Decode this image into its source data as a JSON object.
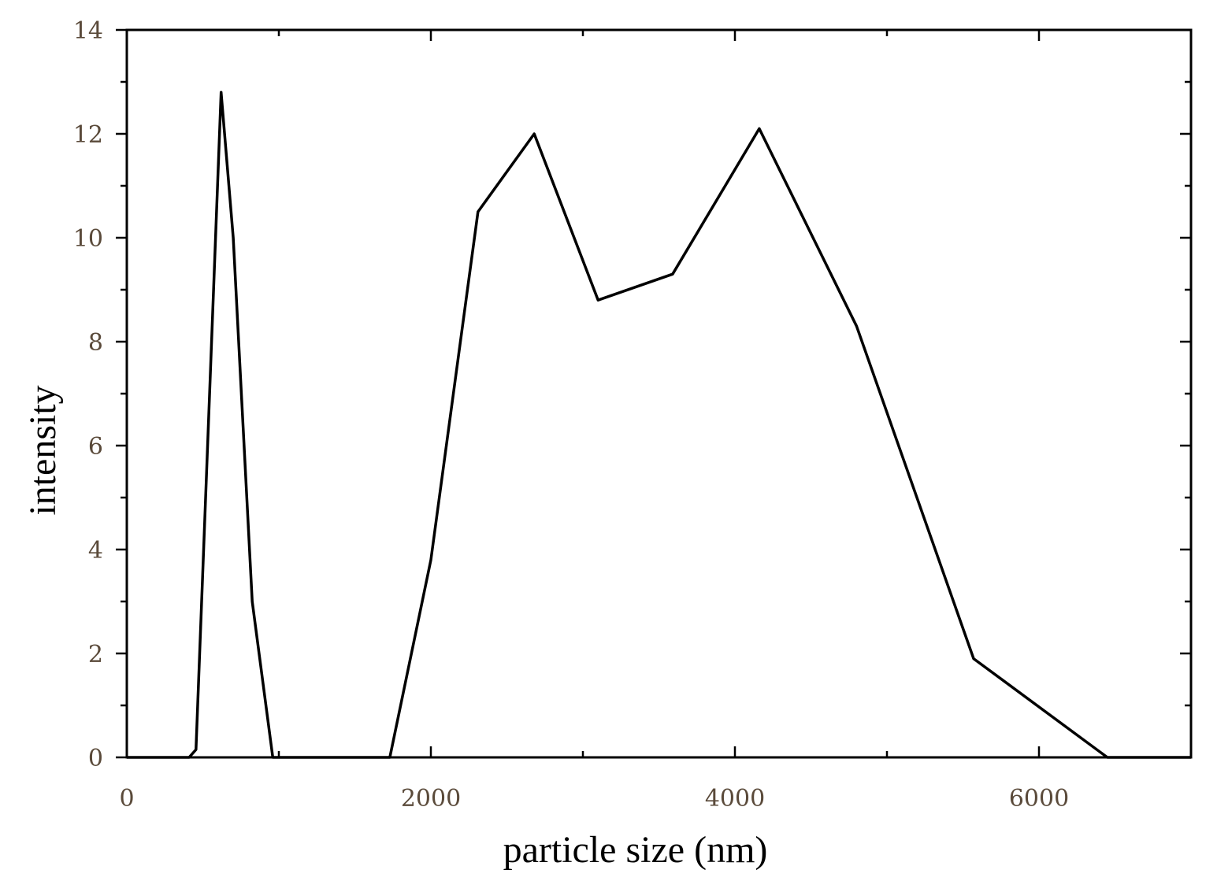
{
  "chart_data": {
    "type": "line",
    "title": "",
    "xlabel": "particle size (nm)",
    "ylabel": "intensity",
    "xlim": [
      0,
      7000
    ],
    "ylim": [
      0,
      14
    ],
    "x_ticks": [
      0,
      2000,
      4000,
      6000
    ],
    "x_tick_labels": [
      "0",
      "2000",
      "4000",
      "6000"
    ],
    "y_ticks": [
      0,
      2,
      4,
      6,
      8,
      10,
      12,
      14
    ],
    "y_tick_labels": [
      "0",
      "2",
      "4",
      "6",
      "8",
      "10",
      "12",
      "14"
    ],
    "x_minor_step": 1000,
    "y_minor_step": 1,
    "grid": false,
    "legend": "none",
    "series": [
      {
        "name": "",
        "color": "#000000",
        "x": [
          0,
          410,
          455,
          620,
          700,
          825,
          960,
          1730,
          2000,
          2310,
          2680,
          3100,
          3590,
          4160,
          4800,
          5570,
          6450,
          7000
        ],
        "y": [
          0,
          0,
          0.15,
          12.8,
          10,
          3,
          0,
          0,
          3.8,
          10.5,
          12,
          8.8,
          9.3,
          12.1,
          8.3,
          1.9,
          0,
          0
        ]
      }
    ]
  }
}
